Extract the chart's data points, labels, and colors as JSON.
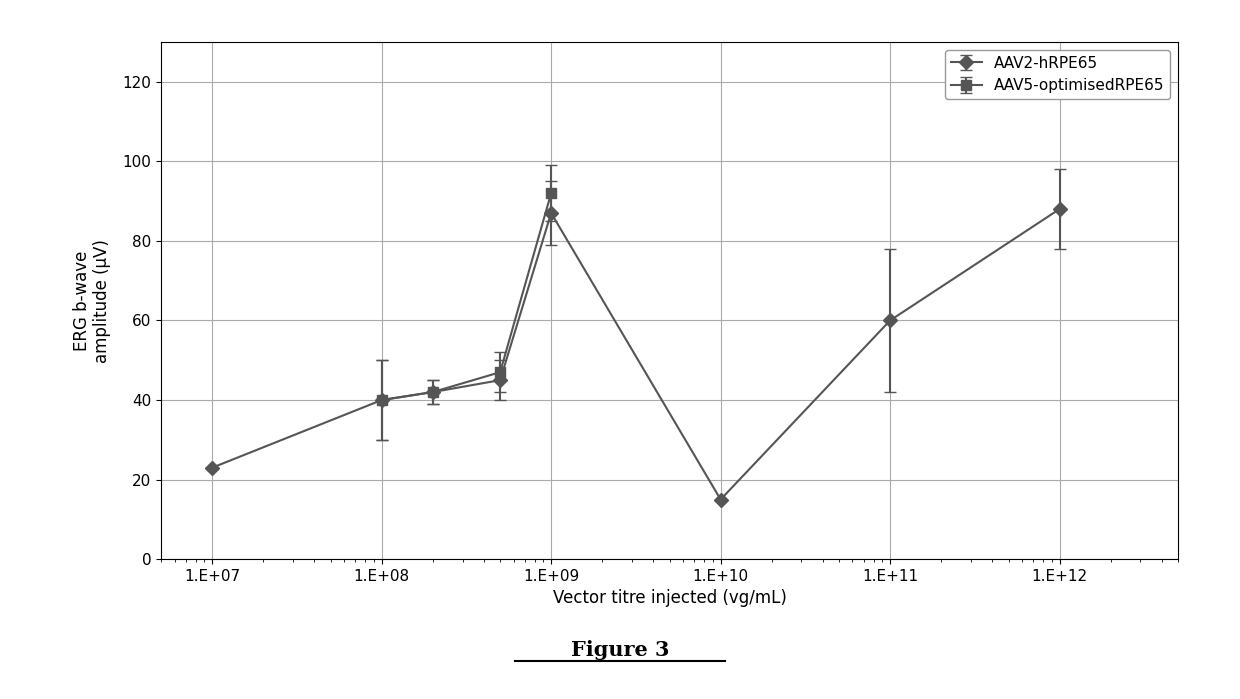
{
  "series1_label": "AAV2-hRPE65",
  "series2_label": "AAV5-optimisedRPE65",
  "series1_x": [
    10000000.0,
    100000000.0,
    200000000.0,
    500000000.0,
    1000000000.0,
    10000000000.0,
    100000000000.0,
    1000000000000.0
  ],
  "series1_y": [
    23,
    40,
    42,
    45,
    87,
    15,
    60,
    88
  ],
  "series1_yerr": [
    0,
    10,
    3,
    5,
    8,
    0,
    18,
    10
  ],
  "series2_x": [
    100000000.0,
    200000000.0,
    500000000.0,
    1000000000.0
  ],
  "series2_y": [
    40,
    42,
    47,
    92
  ],
  "series2_yerr": [
    10,
    3,
    5,
    7
  ],
  "xlabel": "Vector titre injected (vg/mL)",
  "ylabel": "ERG b-wave\namplitude (μV)",
  "ylim": [
    0,
    130
  ],
  "yticks": [
    0,
    20,
    40,
    60,
    80,
    100,
    120
  ],
  "xtick_labels": [
    "1.E+07",
    "1.E+08",
    "1.E+09",
    "1.E+10",
    "1.E+11",
    "1.E+12"
  ],
  "xtick_vals": [
    10000000.0,
    100000000.0,
    1000000000.0,
    10000000000.0,
    100000000000.0,
    1000000000000.0
  ],
  "figure_label": "Figure 3",
  "line_color": "#555555",
  "marker1": "D",
  "marker2": "s",
  "marker_size": 7,
  "line_width": 1.5,
  "grid_color": "#aaaaaa",
  "bg_color": "#ffffff",
  "legend_fontsize": 11,
  "axis_fontsize": 12,
  "tick_fontsize": 11,
  "figure_label_fontsize": 15
}
